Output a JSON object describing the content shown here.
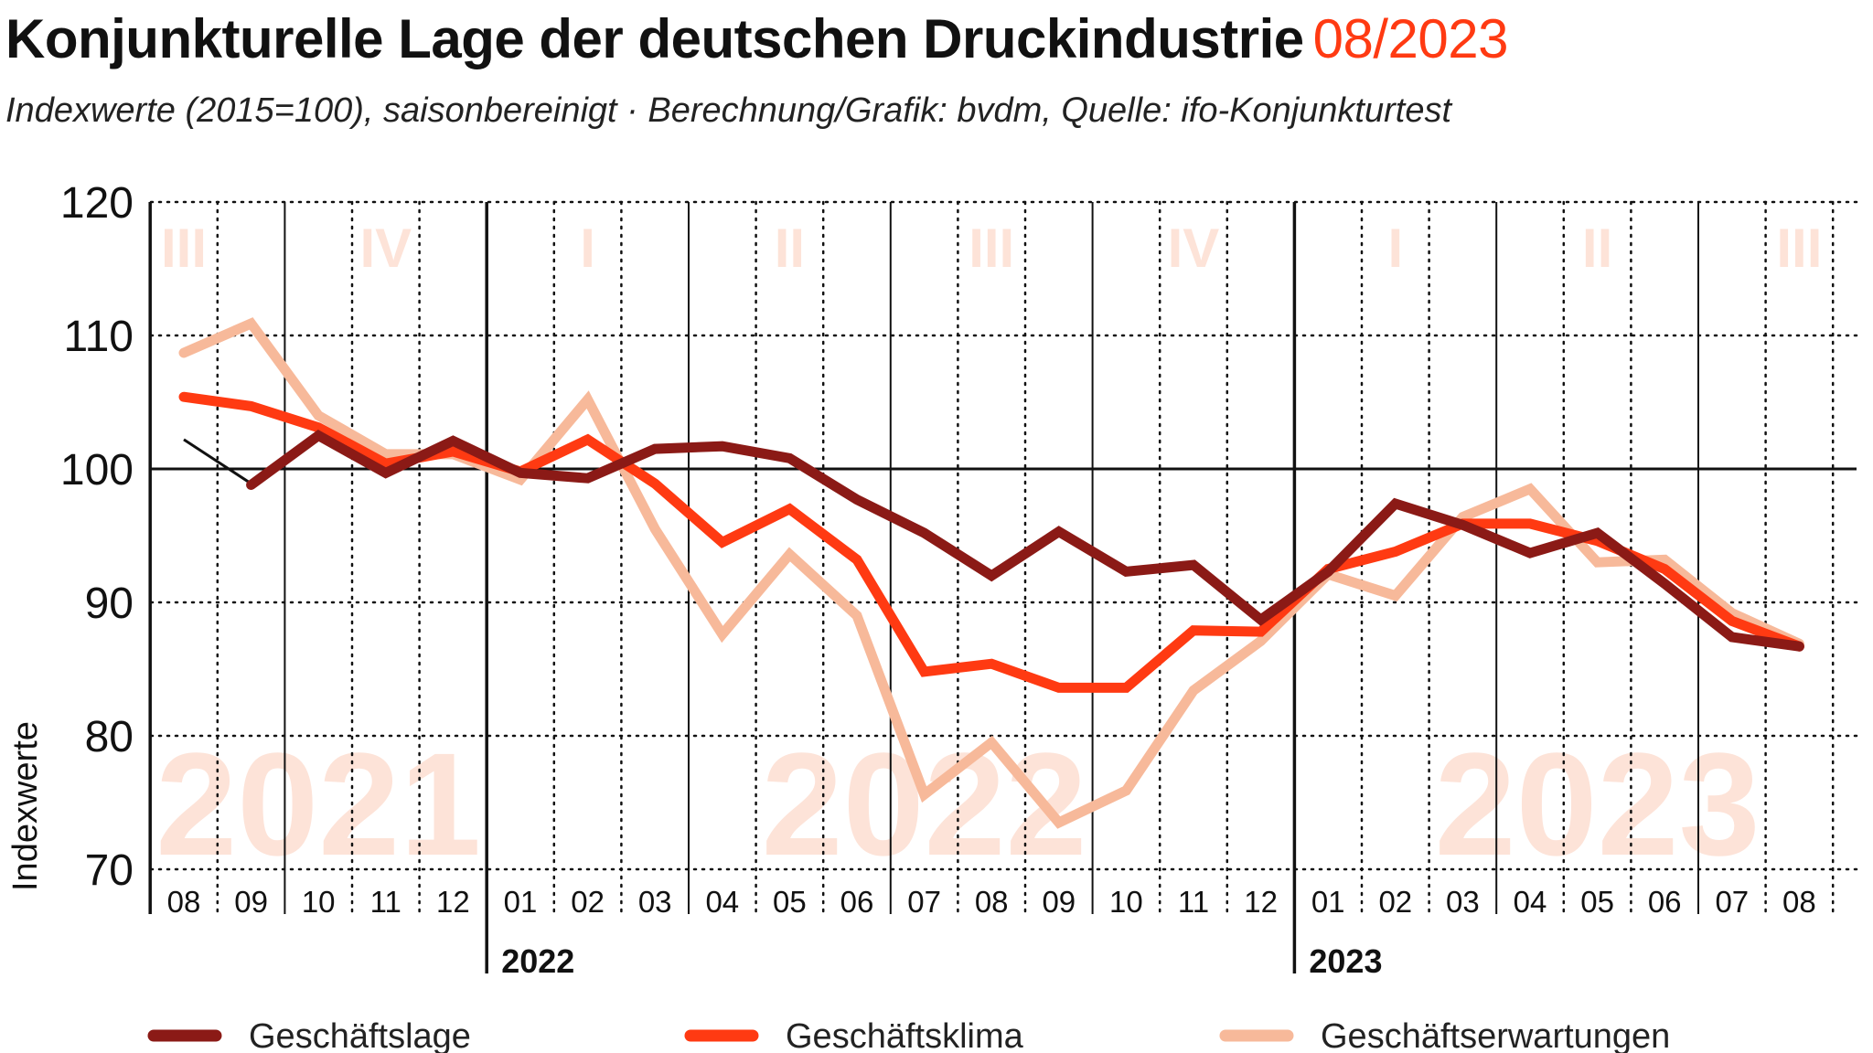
{
  "header": {
    "title": "Konjunkturelle Lage der deutschen Druckindustrie",
    "title_date": "08/2023",
    "subtitle": "Indexwerte (2015=100), saisonbereinigt · Berechnung/Grafik: bvdm, Quelle: ifo-Konjunkturtest"
  },
  "colors": {
    "accent": "#ff3a12",
    "geschaeftslage": "#8b1a16",
    "geschaeftsklima": "#ff3a12",
    "geschaeftserwartungen": "#f7b99a",
    "watermark": "#fde3d8"
  },
  "chart_data": {
    "type": "line",
    "title": "Konjunkturelle Lage der deutschen Druckindustrie 08/2023",
    "xlabel": "",
    "ylabel": "Indexwerte",
    "ylim": [
      70,
      120
    ],
    "yticks": [
      70,
      80,
      90,
      100,
      110,
      120
    ],
    "grid": true,
    "legend_position": "bottom",
    "x": [
      "08",
      "09",
      "10",
      "11",
      "12",
      "01",
      "02",
      "03",
      "04",
      "05",
      "06",
      "07",
      "08",
      "09",
      "10",
      "11",
      "12",
      "01",
      "02",
      "03",
      "04",
      "05",
      "06",
      "07",
      "08"
    ],
    "x_years": [
      2021,
      2021,
      2021,
      2021,
      2021,
      2022,
      2022,
      2022,
      2022,
      2022,
      2022,
      2022,
      2022,
      2022,
      2022,
      2022,
      2022,
      2023,
      2023,
      2023,
      2023,
      2023,
      2023,
      2023,
      2023
    ],
    "year_labels": [
      {
        "label": "2022",
        "start_index": 5
      },
      {
        "label": "2023",
        "start_index": 17
      }
    ],
    "quarter_labels": [
      {
        "label": "III",
        "center_index": 0
      },
      {
        "label": "IV",
        "center_index": 3
      },
      {
        "label": "I",
        "center_index": 6
      },
      {
        "label": "II",
        "center_index": 9
      },
      {
        "label": "III",
        "center_index": 12
      },
      {
        "label": "IV",
        "center_index": 15
      },
      {
        "label": "I",
        "center_index": 18
      },
      {
        "label": "II",
        "center_index": 21
      },
      {
        "label": "III",
        "center_index": 24
      }
    ],
    "watermark_years": [
      {
        "label": "2021",
        "center_index": 2
      },
      {
        "label": "2022",
        "center_index": 11
      },
      {
        "label": "2023",
        "center_index": 21
      }
    ],
    "series": [
      {
        "name": "Geschäftserwartungen",
        "key": "geschaeftserwartungen",
        "values": [
          108.7,
          110.9,
          104.0,
          101.1,
          101.1,
          99.2,
          105.2,
          95.5,
          87.6,
          93.6,
          89.0,
          75.6,
          79.5,
          73.5,
          75.9,
          83.4,
          87.1,
          92.1,
          90.5,
          96.4,
          98.5,
          93.0,
          93.2,
          89.2,
          86.9
        ]
      },
      {
        "name": "Geschäftsklima",
        "key": "geschaeftsklima",
        "values": [
          105.4,
          104.7,
          103.1,
          100.4,
          101.3,
          99.8,
          102.2,
          98.9,
          94.5,
          97.0,
          93.2,
          84.8,
          85.4,
          83.6,
          83.6,
          87.9,
          87.8,
          92.5,
          93.8,
          95.9,
          95.9,
          94.6,
          92.5,
          88.6,
          86.7
        ]
      },
      {
        "name": "Geschäftslage",
        "key": "geschaeftslage",
        "start_index": 1,
        "values": [
          98.8,
          102.5,
          99.7,
          102.1,
          99.7,
          99.3,
          101.5,
          101.7,
          100.8,
          97.7,
          95.2,
          92.0,
          95.3,
          92.3,
          92.8,
          88.7,
          92.3,
          97.4,
          95.8,
          93.7,
          95.2,
          91.4,
          87.4,
          86.7
        ]
      }
    ],
    "connector_lines": [
      {
        "from_index": 0,
        "from_value": 102.2,
        "to_index": 1,
        "to_value": 98.9
      },
      {
        "from_index": 16,
        "from_value": 88.7,
        "to_index": 17,
        "to_value": 92.3
      }
    ]
  },
  "legend": [
    {
      "label": "Geschäftslage",
      "key": "geschaeftslage"
    },
    {
      "label": "Geschäftsklima",
      "key": "geschaeftsklima"
    },
    {
      "label": "Geschäftserwartungen",
      "key": "geschaeftserwartungen"
    }
  ]
}
